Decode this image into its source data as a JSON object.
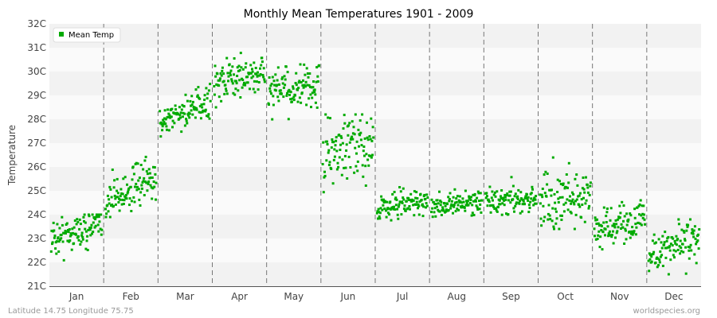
{
  "chart_data": {
    "type": "scatter",
    "title": "Monthly Mean Temperatures 1901 - 2009",
    "ylabel": "Temperature",
    "xlabel": "",
    "ylim": [
      21,
      32
    ],
    "y_ticks": [
      "21C",
      "22C",
      "23C",
      "24C",
      "25C",
      "26C",
      "27C",
      "28C",
      "29C",
      "30C",
      "31C",
      "32C"
    ],
    "categories": [
      "Jan",
      "Feb",
      "Mar",
      "Apr",
      "May",
      "Jun",
      "Jul",
      "Aug",
      "Sep",
      "Oct",
      "Nov",
      "Dec"
    ],
    "grid": "horizontal bands, dashed vertical month separators",
    "legend": {
      "placement": "top-left",
      "label": "Mean Temp"
    },
    "series": [
      {
        "name": "Mean Temp",
        "color": "#00aa00",
        "years": "1901-2009",
        "monthly_profile": [
          {
            "month": "Jan",
            "start": 23.0,
            "end": 23.6,
            "spread_low": 21.9,
            "spread_high": 24.0
          },
          {
            "month": "Feb",
            "start": 24.6,
            "end": 25.5,
            "spread_low": 23.9,
            "spread_high": 26.8
          },
          {
            "month": "Mar",
            "start": 27.9,
            "end": 28.7,
            "spread_low": 27.1,
            "spread_high": 29.6
          },
          {
            "month": "Apr",
            "start": 29.6,
            "end": 29.9,
            "spread_low": 28.5,
            "spread_high": 31.3
          },
          {
            "month": "May",
            "start": 29.2,
            "end": 29.3,
            "spread_low": 27.6,
            "spread_high": 30.3
          },
          {
            "month": "Jun",
            "start": 26.5,
            "end": 27.0,
            "spread_low": 24.1,
            "spread_high": 28.2
          },
          {
            "month": "Jul",
            "start": 24.3,
            "end": 24.6,
            "spread_low": 23.4,
            "spread_high": 25.5
          },
          {
            "month": "Aug",
            "start": 24.3,
            "end": 24.6,
            "spread_low": 23.6,
            "spread_high": 25.3
          },
          {
            "month": "Sep",
            "start": 24.5,
            "end": 24.7,
            "spread_low": 23.6,
            "spread_high": 25.7
          },
          {
            "month": "Oct",
            "start": 24.6,
            "end": 24.8,
            "spread_low": 23.4,
            "spread_high": 27.1
          },
          {
            "month": "Nov",
            "start": 23.3,
            "end": 23.9,
            "spread_low": 22.1,
            "spread_high": 24.6
          },
          {
            "month": "Dec",
            "start": 22.3,
            "end": 23.0,
            "spread_low": 21.1,
            "spread_high": 23.8
          }
        ]
      }
    ]
  },
  "footer": {
    "location": "Latitude 14.75 Longitude 75.75",
    "source": "worldspecies.org"
  }
}
